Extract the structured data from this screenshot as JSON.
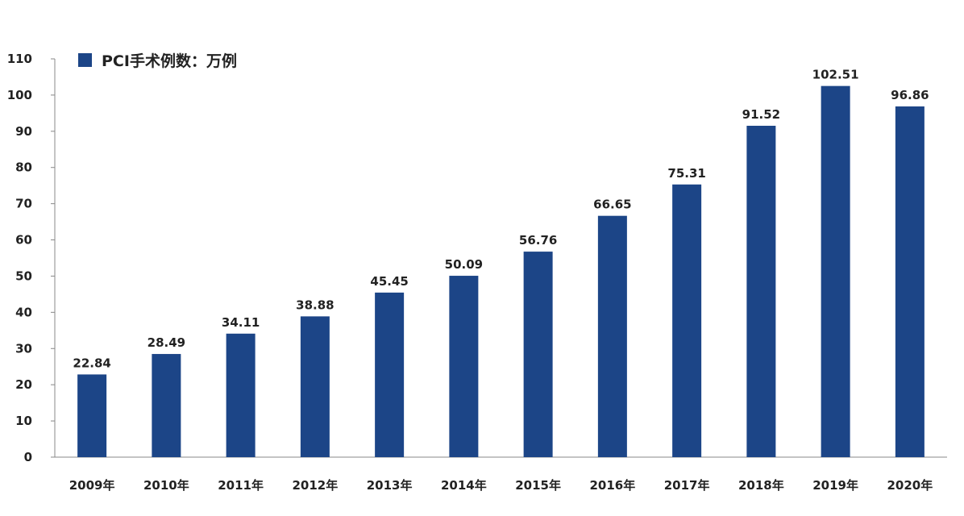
{
  "chart_data": {
    "type": "bar",
    "categories": [
      "2009年",
      "2010年",
      "2011年",
      "2012年",
      "2013年",
      "2014年",
      "2015年",
      "2016年",
      "2017年",
      "2018年",
      "2019年",
      "2020年"
    ],
    "series": [
      {
        "name": "PCI手术例数：万例",
        "values": [
          22.84,
          28.49,
          34.11,
          38.88,
          45.45,
          50.09,
          56.76,
          66.65,
          75.31,
          91.52,
          102.51,
          96.86
        ],
        "data_labels": [
          "22.84",
          "28.49",
          "34.11",
          "38.88",
          "45.45",
          "50.09",
          "56.76",
          "66.65",
          "75.31",
          "91.52",
          "102.51",
          "96.86"
        ],
        "color": "#1c4587"
      }
    ],
    "ylim": [
      0,
      110
    ],
    "yticks": [
      "0",
      "10",
      "20",
      "30",
      "40",
      "50",
      "60",
      "70",
      "80",
      "90",
      "100",
      "110"
    ],
    "grid": false,
    "legend_position": "top-left"
  }
}
